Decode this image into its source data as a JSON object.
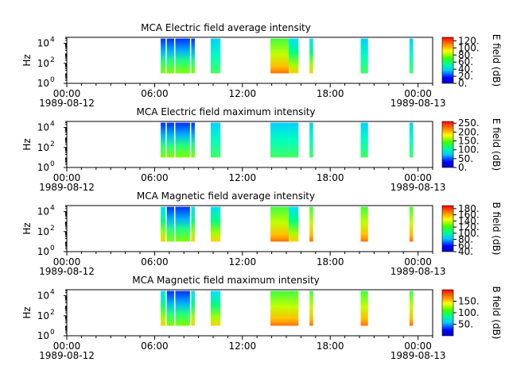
{
  "chart_data": [
    {
      "type": "heatmap",
      "title": "MCA  Electric field average intensity",
      "ylabel": "Hz",
      "yscale": "log",
      "ylim": [
        1,
        40000
      ],
      "y_ticks": [
        "10^0",
        "10^2",
        "10^4"
      ],
      "x_range": [
        "1989-08-12 00:00",
        "1989-08-13 01:00"
      ],
      "x_ticks": [
        {
          "time": "00:00",
          "date": "1989-08-12"
        },
        {
          "time": "06:00",
          "date": ""
        },
        {
          "time": "12:00",
          "date": ""
        },
        {
          "time": "18:00",
          "date": ""
        },
        {
          "time": "00:00",
          "date": "1989-08-13"
        }
      ],
      "colorbar": {
        "label": "E field (dB)",
        "range": [
          0,
          130
        ],
        "ticks": [
          "0.",
          "20.",
          "40.",
          "60.",
          "80.",
          "100.",
          "120."
        ]
      },
      "data_intervals": [
        [
          "06:25",
          "06:45"
        ],
        [
          "06:50",
          "07:20"
        ],
        [
          "07:25",
          "08:25"
        ],
        [
          "08:30",
          "08:45"
        ],
        [
          "09:50",
          "10:20"
        ],
        [
          "10:20",
          "10:30"
        ],
        [
          "13:55",
          "15:10"
        ],
        [
          "15:10",
          "15:50"
        ],
        [
          "16:35",
          "16:50"
        ],
        [
          "20:05",
          "20:35"
        ],
        [
          "23:25",
          "23:40"
        ]
      ]
    },
    {
      "type": "heatmap",
      "title": "MCA  Electric field maximum intensity",
      "ylabel": "Hz",
      "yscale": "log",
      "ylim": [
        1,
        40000
      ],
      "y_ticks": [
        "10^0",
        "10^2",
        "10^4"
      ],
      "x_range": [
        "1989-08-12 00:00",
        "1989-08-13 01:00"
      ],
      "x_ticks": [
        {
          "time": "00:00",
          "date": "1989-08-12"
        },
        {
          "time": "06:00",
          "date": ""
        },
        {
          "time": "12:00",
          "date": ""
        },
        {
          "time": "18:00",
          "date": ""
        },
        {
          "time": "00:00",
          "date": "1989-08-13"
        }
      ],
      "colorbar": {
        "label": "E field (dB)",
        "range": [
          0,
          260
        ],
        "ticks": [
          "0.",
          "50.",
          "100.",
          "150.",
          "200.",
          "250."
        ]
      },
      "data_intervals": [
        [
          "06:25",
          "06:45"
        ],
        [
          "06:50",
          "07:20"
        ],
        [
          "07:25",
          "08:25"
        ],
        [
          "08:30",
          "08:45"
        ],
        [
          "09:50",
          "10:20"
        ],
        [
          "10:20",
          "10:30"
        ],
        [
          "13:55",
          "15:10"
        ],
        [
          "15:10",
          "15:50"
        ],
        [
          "16:35",
          "16:50"
        ],
        [
          "20:05",
          "20:35"
        ],
        [
          "23:25",
          "23:40"
        ]
      ]
    },
    {
      "type": "heatmap",
      "title": "MCA  Magnetic field average intensity",
      "ylabel": "Hz",
      "yscale": "log",
      "ylim": [
        1,
        40000
      ],
      "y_ticks": [
        "10^0",
        "10^2",
        "10^4"
      ],
      "x_range": [
        "1989-08-12 00:00",
        "1989-08-13 01:00"
      ],
      "x_ticks": [
        {
          "time": "00:00",
          "date": "1989-08-12"
        },
        {
          "time": "06:00",
          "date": ""
        },
        {
          "time": "12:00",
          "date": ""
        },
        {
          "time": "18:00",
          "date": ""
        },
        {
          "time": "00:00",
          "date": "1989-08-13"
        }
      ],
      "colorbar": {
        "label": "B field (dB)",
        "range": [
          40,
          190
        ],
        "ticks": [
          "40.",
          "60.",
          "80.",
          "100.",
          "120.",
          "140.",
          "160.",
          "180."
        ]
      },
      "data_intervals": [
        [
          "06:25",
          "06:45"
        ],
        [
          "06:50",
          "07:20"
        ],
        [
          "07:25",
          "08:25"
        ],
        [
          "08:30",
          "08:45"
        ],
        [
          "09:50",
          "10:20"
        ],
        [
          "10:20",
          "10:30"
        ],
        [
          "13:55",
          "15:10"
        ],
        [
          "15:10",
          "15:50"
        ],
        [
          "16:35",
          "16:50"
        ],
        [
          "20:05",
          "20:35"
        ],
        [
          "23:25",
          "23:40"
        ]
      ]
    },
    {
      "type": "heatmap",
      "title": "MCA  Magnetic field maximum intensity",
      "ylabel": "Hz",
      "yscale": "log",
      "ylim": [
        1,
        40000
      ],
      "y_ticks": [
        "10^0",
        "10^2",
        "10^4"
      ],
      "x_range": [
        "1989-08-12 00:00",
        "1989-08-13 01:00"
      ],
      "x_ticks": [
        {
          "time": "00:00",
          "date": "1989-08-12"
        },
        {
          "time": "06:00",
          "date": ""
        },
        {
          "time": "12:00",
          "date": ""
        },
        {
          "time": "18:00",
          "date": ""
        },
        {
          "time": "00:00",
          "date": "1989-08-13"
        }
      ],
      "colorbar": {
        "label": "B field (dB)",
        "range": [
          0,
          200
        ],
        "ticks": [
          "50.",
          "100.",
          "150."
        ]
      },
      "data_intervals": [
        [
          "06:25",
          "06:45"
        ],
        [
          "06:50",
          "07:20"
        ],
        [
          "07:25",
          "08:25"
        ],
        [
          "08:30",
          "08:45"
        ],
        [
          "09:50",
          "10:20"
        ],
        [
          "10:20",
          "10:30"
        ],
        [
          "13:55",
          "15:10"
        ],
        [
          "15:10",
          "15:50"
        ],
        [
          "16:35",
          "16:50"
        ],
        [
          "20:05",
          "20:35"
        ],
        [
          "23:25",
          "23:40"
        ]
      ]
    }
  ]
}
